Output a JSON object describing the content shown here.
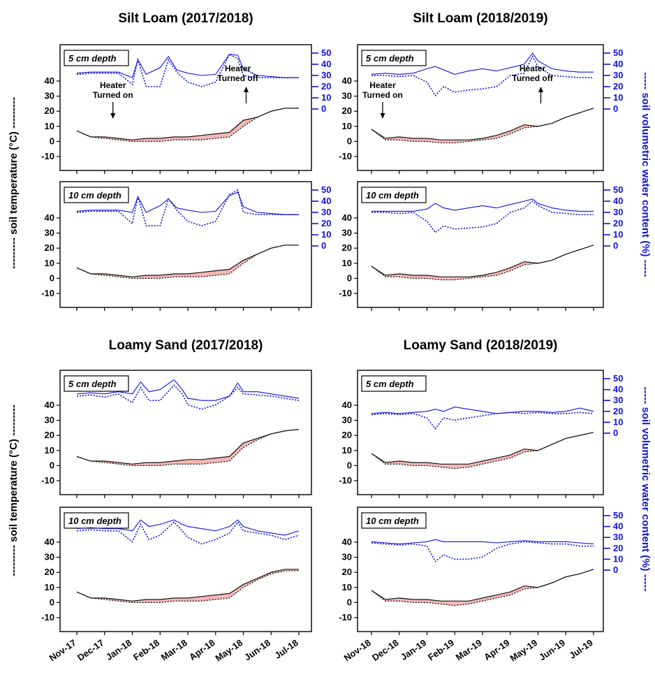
{
  "figure": {
    "left_axis_label": "--------- soil temperature (°C) ---------",
    "right_axis_label": "----- soil volumetric water content (%) -----",
    "row_titles": [
      "Silt Loam (2017/2018)",
      "Silt Loam (2018/2019)",
      "Loamy Sand (2017/2018)",
      "Loamy Sand (2018/2019)"
    ],
    "annotations": {
      "heater_on": [
        "Heater",
        "Turned on"
      ],
      "heater_off": [
        "Heater",
        "Turned off"
      ]
    },
    "colors": {
      "temperature": "#000000",
      "water": "#1010e0",
      "warming_fill": "#f4b8b4",
      "right_axis": "#1010e0"
    }
  },
  "chart_data": [
    {
      "type": "line",
      "title": "Silt Loam (2017/2018)",
      "panel": "5 cm depth",
      "x_ticks": [
        "Nov-17",
        "Dec-17",
        "Jan-18",
        "Feb-18",
        "Mar-18",
        "Apr-18",
        "May-18",
        "Jun-18",
        "Jul-18"
      ],
      "temp_ylim": [
        -10,
        40
      ],
      "vwc_ylim": [
        0,
        50
      ],
      "temp_yticks": [
        -10,
        0,
        10,
        20,
        30,
        40
      ],
      "vwc_yticks": [
        0,
        10,
        20,
        30,
        40,
        50
      ],
      "heater_on_month": 1.1,
      "heater_off_month": 6.0,
      "temperature": {
        "months": [
          0,
          0.5,
          1,
          1.5,
          2,
          2.5,
          3,
          3.5,
          4,
          4.5,
          5,
          5.5,
          6,
          6.5,
          7,
          7.5,
          8
        ],
        "heated": [
          7,
          3,
          3,
          2,
          1,
          2,
          2,
          3,
          3,
          4,
          5,
          6,
          14,
          16,
          20,
          22,
          22
        ],
        "control": [
          7,
          3,
          2,
          1,
          0,
          0,
          0,
          1,
          1,
          1,
          2,
          3,
          10,
          16,
          20,
          22,
          22
        ]
      },
      "water": {
        "months": [
          0,
          0.5,
          1,
          1.5,
          2,
          2.2,
          2.5,
          3,
          3.3,
          3.6,
          4,
          4.5,
          5,
          5.5,
          5.8,
          6,
          6.5,
          7,
          7.5,
          8
        ],
        "heated": [
          32,
          33,
          33,
          33,
          28,
          44,
          31,
          37,
          47,
          35,
          32,
          30,
          31,
          49,
          48,
          36,
          30,
          29,
          28,
          28
        ],
        "control": [
          31,
          32,
          32,
          32,
          22,
          44,
          20,
          20,
          44,
          33,
          24,
          20,
          24,
          49,
          45,
          30,
          28,
          28,
          28,
          28
        ]
      }
    },
    {
      "type": "line",
      "title": "Silt Loam (2018/2019)",
      "panel": "5 cm depth",
      "x_ticks": [
        "Nov-18",
        "Dec-18",
        "Jan-19",
        "Feb-19",
        "Mar-19",
        "Apr-19",
        "May-19",
        "Jun-19",
        "Jul-19"
      ],
      "temp_ylim": [
        -10,
        40
      ],
      "vwc_ylim": [
        0,
        50
      ],
      "temp_yticks": [
        -10,
        0,
        10,
        20,
        30,
        40
      ],
      "vwc_yticks": [
        0,
        10,
        20,
        30,
        40,
        50
      ],
      "heater_on_month": 0.2,
      "heater_off_month": 6.0,
      "temperature": {
        "months": [
          0,
          0.5,
          1,
          1.5,
          2,
          2.5,
          3,
          3.5,
          4,
          4.5,
          5,
          5.5,
          6,
          6.5,
          7,
          7.5,
          8
        ],
        "heated": [
          8,
          2,
          3,
          2,
          2,
          1,
          1,
          1,
          2,
          4,
          7,
          11,
          10,
          12,
          16,
          19,
          22
        ],
        "control": [
          8,
          1,
          1,
          0,
          0,
          -1,
          -1,
          0,
          1,
          2,
          5,
          9,
          10,
          12,
          16,
          19,
          22
        ]
      },
      "water": {
        "months": [
          0,
          0.5,
          1,
          1.5,
          2,
          2.3,
          2.6,
          3,
          3.5,
          4,
          4.5,
          5,
          5.5,
          5.8,
          6,
          6.5,
          7,
          7.5,
          8
        ],
        "heated": [
          31,
          32,
          31,
          32,
          36,
          38,
          35,
          31,
          34,
          36,
          34,
          37,
          40,
          50,
          43,
          36,
          34,
          33,
          33
        ],
        "control": [
          30,
          30,
          29,
          30,
          24,
          12,
          20,
          15,
          17,
          18,
          20,
          30,
          32,
          47,
          38,
          30,
          29,
          28,
          28
        ]
      }
    },
    {
      "type": "line",
      "title": "Silt Loam (2017/2018)",
      "panel": "10 cm depth",
      "x_ticks": [
        "Nov-17",
        "Dec-17",
        "Jan-18",
        "Feb-18",
        "Mar-18",
        "Apr-18",
        "May-18",
        "Jun-18",
        "Jul-18"
      ],
      "temp_ylim": [
        -10,
        40
      ],
      "vwc_ylim": [
        0,
        50
      ],
      "temp_yticks": [
        -10,
        0,
        10,
        20,
        30,
        40
      ],
      "vwc_yticks": [
        0,
        10,
        20,
        30,
        40,
        50
      ],
      "temperature": {
        "months": [
          0,
          0.5,
          1,
          1.5,
          2,
          2.5,
          3,
          3.5,
          4,
          4.5,
          5,
          5.5,
          6,
          6.5,
          7,
          7.5,
          8
        ],
        "heated": [
          7,
          3,
          3,
          2,
          1,
          2,
          2,
          3,
          3,
          4,
          5,
          6,
          12,
          16,
          20,
          22,
          22
        ],
        "control": [
          7,
          3,
          2,
          1,
          0,
          0,
          0,
          1,
          1,
          1,
          2,
          3,
          10,
          16,
          20,
          22,
          22
        ]
      },
      "water": {
        "months": [
          0,
          0.5,
          1,
          1.5,
          2,
          2.2,
          2.5,
          3,
          3.3,
          3.6,
          4,
          4.5,
          5,
          5.5,
          5.8,
          6,
          6.5,
          7,
          7.5,
          8
        ],
        "heated": [
          31,
          32,
          32,
          32,
          30,
          44,
          30,
          36,
          42,
          34,
          32,
          30,
          31,
          45,
          48,
          35,
          30,
          29,
          28,
          28
        ],
        "control": [
          30,
          31,
          31,
          31,
          20,
          44,
          18,
          18,
          42,
          32,
          22,
          18,
          22,
          46,
          50,
          30,
          28,
          28,
          28,
          28
        ]
      }
    },
    {
      "type": "line",
      "title": "Silt Loam (2018/2019)",
      "panel": "10 cm depth",
      "x_ticks": [
        "Nov-18",
        "Dec-18",
        "Jan-19",
        "Feb-19",
        "Mar-19",
        "Apr-19",
        "May-19",
        "Jun-19",
        "Jul-19"
      ],
      "temp_ylim": [
        -10,
        40
      ],
      "vwc_ylim": [
        0,
        50
      ],
      "temp_yticks": [
        -10,
        0,
        10,
        20,
        30,
        40
      ],
      "vwc_yticks": [
        0,
        10,
        20,
        30,
        40,
        50
      ],
      "temperature": {
        "months": [
          0,
          0.5,
          1,
          1.5,
          2,
          2.5,
          3,
          3.5,
          4,
          4.5,
          5,
          5.5,
          6,
          6.5,
          7,
          7.5,
          8
        ],
        "heated": [
          8,
          2,
          3,
          2,
          2,
          1,
          1,
          1,
          2,
          4,
          7,
          11,
          10,
          12,
          16,
          19,
          22
        ],
        "control": [
          8,
          1,
          1,
          0,
          0,
          -1,
          -1,
          0,
          1,
          2,
          5,
          9,
          10,
          12,
          16,
          19,
          22
        ]
      },
      "water": {
        "months": [
          0,
          0.5,
          1,
          1.5,
          2,
          2.3,
          2.6,
          3,
          3.5,
          4,
          4.5,
          5,
          5.5,
          5.8,
          6,
          6.5,
          7,
          7.5,
          8
        ],
        "heated": [
          31,
          31,
          31,
          31,
          33,
          38,
          34,
          32,
          34,
          36,
          34,
          37,
          40,
          42,
          38,
          34,
          32,
          31,
          31
        ],
        "control": [
          30,
          30,
          29,
          30,
          22,
          12,
          18,
          15,
          16,
          17,
          20,
          30,
          34,
          40,
          36,
          30,
          29,
          28,
          28
        ]
      }
    },
    {
      "type": "line",
      "title": "Loamy Sand (2017/2018)",
      "panel": "5 cm depth",
      "x_ticks": [
        "Nov-17",
        "Dec-17",
        "Jan-18",
        "Feb-18",
        "Mar-18",
        "Apr-18",
        "May-18",
        "Jun-18",
        "Jul-18"
      ],
      "temp_ylim": [
        -10,
        40
      ],
      "temp_yticks": [
        -10,
        0,
        10,
        20,
        30,
        40
      ],
      "temperature": {
        "months": [
          0,
          0.5,
          1,
          1.5,
          2,
          2.5,
          3,
          3.5,
          4,
          4.5,
          5,
          5.5,
          6,
          6.5,
          7,
          7.5,
          8
        ],
        "heated": [
          6,
          3,
          3,
          2,
          1,
          2,
          2,
          3,
          4,
          4,
          5,
          6,
          15,
          18,
          21,
          23,
          24
        ],
        "control": [
          6,
          3,
          2,
          1,
          0,
          0,
          0,
          1,
          1,
          1,
          2,
          3,
          12,
          17,
          21,
          23,
          24
        ]
      },
      "water": {
        "months": [
          0,
          0.5,
          1,
          1.5,
          2,
          2.3,
          2.6,
          3,
          3.5,
          3.8,
          4,
          4.5,
          5,
          5.5,
          5.8,
          6,
          6.5,
          7,
          7.5,
          8
        ],
        "heated": [
          36,
          37,
          36,
          38,
          36,
          47,
          38,
          40,
          49,
          40,
          32,
          30,
          30,
          34,
          46,
          38,
          38,
          36,
          34,
          32
        ],
        "control": [
          34,
          35,
          33,
          36,
          28,
          42,
          30,
          30,
          44,
          36,
          26,
          22,
          26,
          34,
          42,
          36,
          35,
          34,
          32,
          30
        ]
      }
    },
    {
      "type": "line",
      "title": "Loamy Sand (2018/2019)",
      "panel": "5 cm depth",
      "x_ticks": [
        "Nov-18",
        "Dec-18",
        "Jan-19",
        "Feb-19",
        "Mar-19",
        "Apr-19",
        "May-19",
        "Jun-19",
        "Jul-19"
      ],
      "temp_ylim": [
        -10,
        40
      ],
      "vwc_ylim": [
        0,
        50
      ],
      "temp_yticks": [
        -10,
        0,
        10,
        20,
        30,
        40
      ],
      "vwc_yticks": [
        0,
        10,
        20,
        30,
        40,
        50
      ],
      "temperature": {
        "months": [
          0,
          0.5,
          1,
          1.5,
          2,
          2.5,
          3,
          3.5,
          4,
          4.5,
          5,
          5.5,
          6,
          6.5,
          7,
          7.5,
          8
        ],
        "heated": [
          8,
          2,
          3,
          2,
          2,
          1,
          1,
          1,
          3,
          5,
          7,
          11,
          10,
          14,
          18,
          20,
          22
        ],
        "control": [
          8,
          1,
          1,
          0,
          0,
          -1,
          -2,
          -1,
          1,
          3,
          5,
          9,
          10,
          14,
          18,
          20,
          22
        ]
      },
      "water": {
        "months": [
          0,
          0.5,
          1,
          1.5,
          2,
          2.3,
          2.6,
          3,
          3.5,
          4,
          4.5,
          5,
          5.5,
          6,
          6.5,
          7,
          7.5,
          8
        ],
        "heated": [
          18,
          19,
          18,
          19,
          20,
          22,
          20,
          24,
          22,
          20,
          18,
          19,
          20,
          20,
          19,
          20,
          23,
          20
        ],
        "control": [
          17,
          18,
          17,
          18,
          14,
          4,
          14,
          12,
          14,
          16,
          18,
          19,
          18,
          19,
          18,
          18,
          19,
          18
        ]
      }
    },
    {
      "type": "line",
      "title": "Loamy Sand (2017/2018)",
      "panel": "10 cm depth",
      "x_ticks": [
        "Nov-17",
        "Dec-17",
        "Jan-18",
        "Feb-18",
        "Mar-18",
        "Apr-18",
        "May-18",
        "Jun-18",
        "Jul-18"
      ],
      "temp_ylim": [
        -10,
        40
      ],
      "temp_yticks": [
        -10,
        0,
        10,
        20,
        30,
        40
      ],
      "temperature": {
        "months": [
          0,
          0.5,
          1,
          1.5,
          2,
          2.5,
          3,
          3.5,
          4,
          4.5,
          5,
          5.5,
          6,
          6.5,
          7,
          7.5,
          8
        ],
        "heated": [
          7,
          3,
          3,
          2,
          1,
          2,
          2,
          3,
          3,
          4,
          5,
          6,
          12,
          16,
          20,
          22,
          22
        ],
        "control": [
          7,
          3,
          2,
          1,
          0,
          0,
          0,
          1,
          1,
          1,
          2,
          3,
          10,
          15,
          19,
          21,
          21
        ]
      },
      "water": {
        "months": [
          0,
          0.5,
          1,
          1.5,
          2,
          2.3,
          2.6,
          3,
          3.5,
          3.8,
          4,
          4.5,
          5,
          5.5,
          5.8,
          6,
          6.5,
          7,
          7.5,
          8
        ],
        "heated": [
          38,
          39,
          38,
          38,
          36,
          46,
          40,
          42,
          46,
          42,
          40,
          38,
          36,
          40,
          46,
          40,
          36,
          34,
          32,
          36
        ],
        "control": [
          36,
          37,
          36,
          36,
          26,
          42,
          28,
          32,
          44,
          36,
          30,
          24,
          28,
          34,
          44,
          36,
          34,
          32,
          28,
          32
        ]
      }
    },
    {
      "type": "line",
      "title": "Loamy Sand (2018/2019)",
      "panel": "10 cm depth",
      "x_ticks": [
        "Nov-18",
        "Dec-18",
        "Jan-19",
        "Feb-19",
        "Mar-19",
        "Apr-19",
        "May-19",
        "Jun-19",
        "Jul-19"
      ],
      "temp_ylim": [
        -10,
        40
      ],
      "vwc_ylim": [
        0,
        50
      ],
      "temp_yticks": [
        -10,
        0,
        10,
        20,
        30,
        40
      ],
      "vwc_yticks": [
        0,
        10,
        20,
        30,
        40,
        50
      ],
      "temperature": {
        "months": [
          0,
          0.5,
          1,
          1.5,
          2,
          2.5,
          3,
          3.5,
          4,
          4.5,
          5,
          5.5,
          6,
          6.5,
          7,
          7.5,
          8
        ],
        "heated": [
          8,
          2,
          3,
          2,
          2,
          1,
          1,
          1,
          3,
          5,
          7,
          11,
          10,
          13,
          17,
          19,
          22
        ],
        "control": [
          8,
          1,
          1,
          0,
          0,
          -1,
          -2,
          -1,
          1,
          3,
          5,
          9,
          10,
          13,
          17,
          19,
          22
        ]
      },
      "water": {
        "months": [
          0,
          0.5,
          1,
          1.5,
          2,
          2.3,
          2.6,
          3,
          3.5,
          4,
          4.5,
          5,
          5.5,
          6,
          6.5,
          7,
          7.5,
          8
        ],
        "heated": [
          26,
          25,
          24,
          25,
          26,
          28,
          26,
          26,
          26,
          26,
          25,
          26,
          27,
          26,
          26,
          26,
          25,
          24
        ],
        "control": [
          25,
          24,
          23,
          24,
          22,
          8,
          14,
          10,
          10,
          12,
          20,
          24,
          26,
          25,
          24,
          24,
          22,
          22
        ]
      }
    }
  ]
}
